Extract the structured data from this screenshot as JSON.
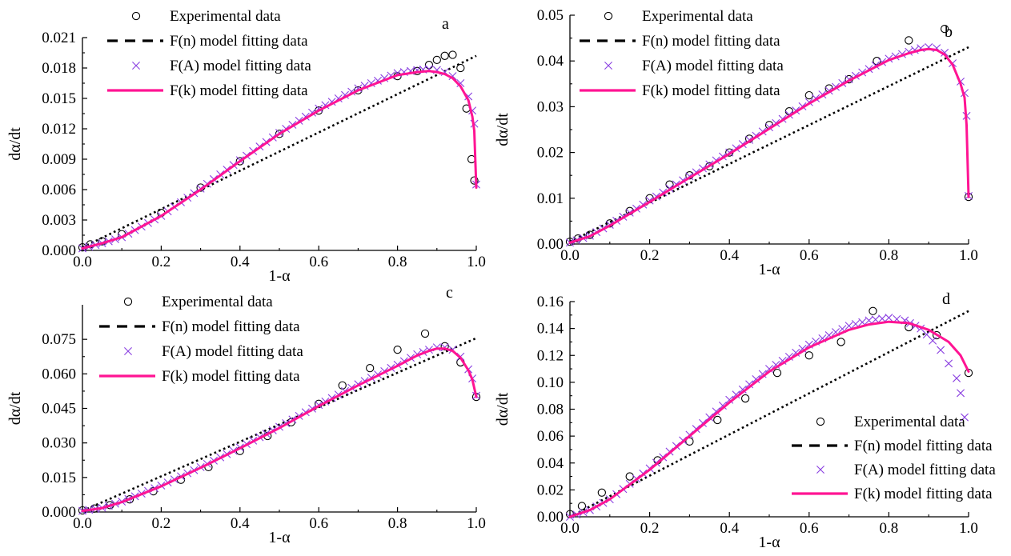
{
  "figure": {
    "colors": {
      "experimental": "#000000",
      "fn_model": "#000000",
      "fa_model": "#8a3fe0",
      "fk_model": "#ff1493"
    }
  },
  "chart_data": [
    {
      "type": "line",
      "panel_label": "a",
      "xlabel": "1-α",
      "ylabel": "dα/dt",
      "xlim": [
        0,
        1
      ],
      "ylim": [
        0,
        0.021
      ],
      "x_ticks": [
        "0.0",
        "0.2",
        "0.4",
        "0.6",
        "0.8",
        "1.0"
      ],
      "y_ticks": [
        "0.000",
        "0.003",
        "0.006",
        "0.009",
        "0.012",
        "0.015",
        "0.018",
        "0.021"
      ],
      "legend_position": "top-left",
      "legend": [
        "Experimental data",
        "F(n) model fitting data",
        "F(A) model fitting data",
        "F(k) model fitting data"
      ],
      "series": [
        {
          "name": "Experimental data",
          "marker": "circle",
          "x": [
            0.0,
            0.02,
            0.05,
            0.1,
            0.2,
            0.3,
            0.4,
            0.5,
            0.6,
            0.7,
            0.8,
            0.85,
            0.88,
            0.9,
            0.92,
            0.94,
            0.96,
            0.975,
            0.988,
            0.995
          ],
          "y": [
            0.0003,
            0.0006,
            0.0009,
            0.0016,
            0.0037,
            0.0062,
            0.0088,
            0.0115,
            0.0138,
            0.0158,
            0.0172,
            0.0177,
            0.0183,
            0.0188,
            0.0192,
            0.0193,
            0.018,
            0.014,
            0.009,
            0.0069
          ]
        },
        {
          "name": "F(n) model fitting data",
          "marker": "dotted-line",
          "x": [
            0.0,
            1.0
          ],
          "y": [
            0.0003,
            0.0192
          ]
        },
        {
          "name": "F(A) model fitting data",
          "marker": "cross",
          "x": [
            0.0,
            0.05,
            0.1,
            0.2,
            0.3,
            0.4,
            0.5,
            0.6,
            0.7,
            0.8,
            0.85,
            0.88,
            0.9,
            0.92,
            0.94,
            0.96,
            0.98,
            0.99,
            0.995,
            1.0
          ],
          "y": [
            0.0002,
            0.0007,
            0.0013,
            0.0034,
            0.0061,
            0.0089,
            0.0116,
            0.014,
            0.016,
            0.0175,
            0.0178,
            0.0179,
            0.0178,
            0.0176,
            0.0172,
            0.0165,
            0.0152,
            0.0138,
            0.0125,
            0.0065
          ]
        },
        {
          "name": "F(k) model fitting data",
          "marker": "solid-line",
          "x": [
            0.0,
            0.05,
            0.1,
            0.2,
            0.3,
            0.4,
            0.5,
            0.6,
            0.7,
            0.8,
            0.85,
            0.88,
            0.9,
            0.92,
            0.94,
            0.96,
            0.98,
            0.99,
            0.995,
            1.0
          ],
          "y": [
            0.0002,
            0.0007,
            0.0013,
            0.0034,
            0.006,
            0.0088,
            0.0115,
            0.0138,
            0.0158,
            0.0173,
            0.0176,
            0.0177,
            0.0176,
            0.0174,
            0.017,
            0.0162,
            0.0148,
            0.0132,
            0.0118,
            0.0062
          ]
        }
      ]
    },
    {
      "type": "line",
      "panel_label": "b",
      "xlabel": "1-α",
      "ylabel": "dα/dt",
      "xlim": [
        0,
        1
      ],
      "ylim": [
        0,
        0.05
      ],
      "x_ticks": [
        "0.0",
        "0.2",
        "0.4",
        "0.6",
        "0.8",
        "1.0"
      ],
      "y_ticks": [
        "0.00",
        "0.01",
        "0.02",
        "0.03",
        "0.04",
        "0.05"
      ],
      "legend_position": "top-left",
      "legend": [
        "Experimental data",
        "F(n) model fitting data",
        "F(A) model fitting data",
        "F(k) model fitting data"
      ],
      "series": [
        {
          "name": "Experimental data",
          "marker": "circle",
          "x": [
            0.0,
            0.02,
            0.05,
            0.1,
            0.15,
            0.2,
            0.25,
            0.3,
            0.35,
            0.4,
            0.45,
            0.5,
            0.55,
            0.6,
            0.65,
            0.7,
            0.77,
            0.85,
            0.94,
            1.0
          ],
          "y": [
            0.0005,
            0.0012,
            0.002,
            0.0045,
            0.0072,
            0.01,
            0.013,
            0.015,
            0.017,
            0.02,
            0.023,
            0.026,
            0.029,
            0.0325,
            0.034,
            0.036,
            0.04,
            0.0445,
            0.047,
            0.0103
          ]
        },
        {
          "name": "F(n) model fitting data",
          "marker": "dotted-line",
          "x": [
            0.0,
            1.0
          ],
          "y": [
            0.0005,
            0.043
          ]
        },
        {
          "name": "F(A) model fitting data",
          "marker": "cross",
          "x": [
            0.0,
            0.05,
            0.1,
            0.2,
            0.3,
            0.4,
            0.5,
            0.6,
            0.7,
            0.8,
            0.85,
            0.88,
            0.9,
            0.92,
            0.94,
            0.96,
            0.98,
            0.99,
            0.995,
            1.0
          ],
          "y": [
            0.0003,
            0.0018,
            0.0042,
            0.0095,
            0.0148,
            0.02,
            0.0255,
            0.031,
            0.036,
            0.0405,
            0.042,
            0.0428,
            0.043,
            0.0428,
            0.0418,
            0.0395,
            0.0355,
            0.033,
            0.028,
            0.0105
          ]
        },
        {
          "name": "F(k) model fitting data",
          "marker": "solid-line",
          "x": [
            0.0,
            0.05,
            0.1,
            0.2,
            0.3,
            0.4,
            0.5,
            0.6,
            0.7,
            0.8,
            0.85,
            0.88,
            0.9,
            0.92,
            0.94,
            0.96,
            0.98,
            0.99,
            0.995,
            1.0
          ],
          "y": [
            0.0003,
            0.0017,
            0.004,
            0.0092,
            0.0145,
            0.0197,
            0.0252,
            0.0307,
            0.0357,
            0.0402,
            0.0417,
            0.0424,
            0.0426,
            0.0424,
            0.0414,
            0.0392,
            0.035,
            0.032,
            0.026,
            0.0103
          ]
        }
      ]
    },
    {
      "type": "line",
      "panel_label": "c",
      "xlabel": "1-α",
      "ylabel": "dα/dt",
      "xlim": [
        0,
        1
      ],
      "ylim": [
        0,
        0.09
      ],
      "x_ticks": [
        "0.0",
        "0.2",
        "0.4",
        "0.6",
        "0.8",
        "1.0"
      ],
      "y_ticks": [
        "0.000",
        "0.015",
        "0.030",
        "0.045",
        "0.060",
        "0.075"
      ],
      "legend_position": "top-left",
      "legend": [
        "Experimental data",
        "F(n) model fitting data",
        "F(A) model fitting data",
        "F(k) model fitting data"
      ],
      "series": [
        {
          "name": "Experimental data",
          "marker": "circle",
          "x": [
            0.0,
            0.03,
            0.07,
            0.12,
            0.18,
            0.25,
            0.32,
            0.4,
            0.47,
            0.53,
            0.6,
            0.66,
            0.73,
            0.8,
            0.87,
            0.92,
            0.96,
            1.0
          ],
          "y": [
            0.0007,
            0.0015,
            0.003,
            0.0055,
            0.009,
            0.014,
            0.0195,
            0.0265,
            0.033,
            0.039,
            0.047,
            0.055,
            0.0625,
            0.0705,
            0.0775,
            0.072,
            0.065,
            0.05
          ]
        },
        {
          "name": "F(n) model fitting data",
          "marker": "dotted-line",
          "x": [
            0.0,
            1.0
          ],
          "y": [
            0.0005,
            0.0755
          ]
        },
        {
          "name": "F(A) model fitting data",
          "marker": "cross",
          "x": [
            0.0,
            0.05,
            0.1,
            0.2,
            0.3,
            0.4,
            0.5,
            0.6,
            0.7,
            0.8,
            0.85,
            0.88,
            0.9,
            0.92,
            0.94,
            0.96,
            0.98,
            0.99,
            1.0
          ],
          "y": [
            0.0005,
            0.0018,
            0.0045,
            0.0115,
            0.0195,
            0.028,
            0.037,
            0.0465,
            0.0555,
            0.064,
            0.0685,
            0.0705,
            0.0715,
            0.0715,
            0.0705,
            0.0675,
            0.062,
            0.058,
            0.0505
          ]
        },
        {
          "name": "F(k) model fitting data",
          "marker": "solid-line",
          "x": [
            0.0,
            0.05,
            0.1,
            0.2,
            0.3,
            0.4,
            0.5,
            0.6,
            0.7,
            0.8,
            0.85,
            0.88,
            0.9,
            0.92,
            0.94,
            0.96,
            0.98,
            0.99,
            1.0
          ],
          "y": [
            0.0005,
            0.0017,
            0.0043,
            0.0112,
            0.0192,
            0.0277,
            0.0365,
            0.046,
            0.055,
            0.0635,
            0.068,
            0.07,
            0.071,
            0.071,
            0.07,
            0.067,
            0.0615,
            0.0575,
            0.05
          ]
        }
      ]
    },
    {
      "type": "line",
      "panel_label": "d",
      "xlabel": "1-α",
      "ylabel": "dα/dt",
      "xlim": [
        0,
        1
      ],
      "ylim": [
        0,
        0.16
      ],
      "x_ticks": [
        "0.0",
        "0.2",
        "0.4",
        "0.6",
        "0.8",
        "1.0"
      ],
      "y_ticks": [
        "0.00",
        "0.02",
        "0.04",
        "0.06",
        "0.08",
        "0.10",
        "0.12",
        "0.14",
        "0.16"
      ],
      "legend_position": "bottom-right",
      "legend": [
        "Experimental data",
        "F(n) model fitting data",
        "F(A) model fitting data",
        "F(k) model fitting data"
      ],
      "series": [
        {
          "name": "Experimental data",
          "marker": "circle",
          "x": [
            0.0,
            0.03,
            0.08,
            0.15,
            0.22,
            0.3,
            0.37,
            0.44,
            0.52,
            0.6,
            0.68,
            0.76,
            0.85,
            0.92,
            1.0
          ],
          "y": [
            0.002,
            0.008,
            0.018,
            0.03,
            0.042,
            0.056,
            0.072,
            0.088,
            0.107,
            0.12,
            0.13,
            0.153,
            0.141,
            0.135,
            0.107
          ]
        },
        {
          "name": "F(n) model fitting data",
          "marker": "dotted-line",
          "x": [
            0.0,
            1.0
          ],
          "y": [
            0.0,
            0.153
          ]
        },
        {
          "name": "F(A) model fitting data",
          "marker": "cross",
          "x": [
            0.0,
            0.05,
            0.1,
            0.2,
            0.3,
            0.4,
            0.5,
            0.6,
            0.7,
            0.75,
            0.8,
            0.84,
            0.88,
            0.91,
            0.93,
            0.95,
            0.97,
            0.98,
            0.99
          ],
          "y": [
            0.0,
            0.005,
            0.013,
            0.036,
            0.061,
            0.087,
            0.11,
            0.128,
            0.142,
            0.146,
            0.148,
            0.146,
            0.14,
            0.131,
            0.124,
            0.114,
            0.103,
            0.092,
            0.074
          ]
        },
        {
          "name": "F(k) model fitting data",
          "marker": "solid-line",
          "x": [
            0.0,
            0.05,
            0.1,
            0.2,
            0.3,
            0.4,
            0.5,
            0.6,
            0.7,
            0.75,
            0.8,
            0.85,
            0.9,
            0.95,
            0.98,
            1.0
          ],
          "y": [
            0.0,
            0.005,
            0.013,
            0.035,
            0.06,
            0.085,
            0.108,
            0.126,
            0.139,
            0.143,
            0.145,
            0.144,
            0.139,
            0.13,
            0.12,
            0.108
          ]
        }
      ]
    }
  ]
}
